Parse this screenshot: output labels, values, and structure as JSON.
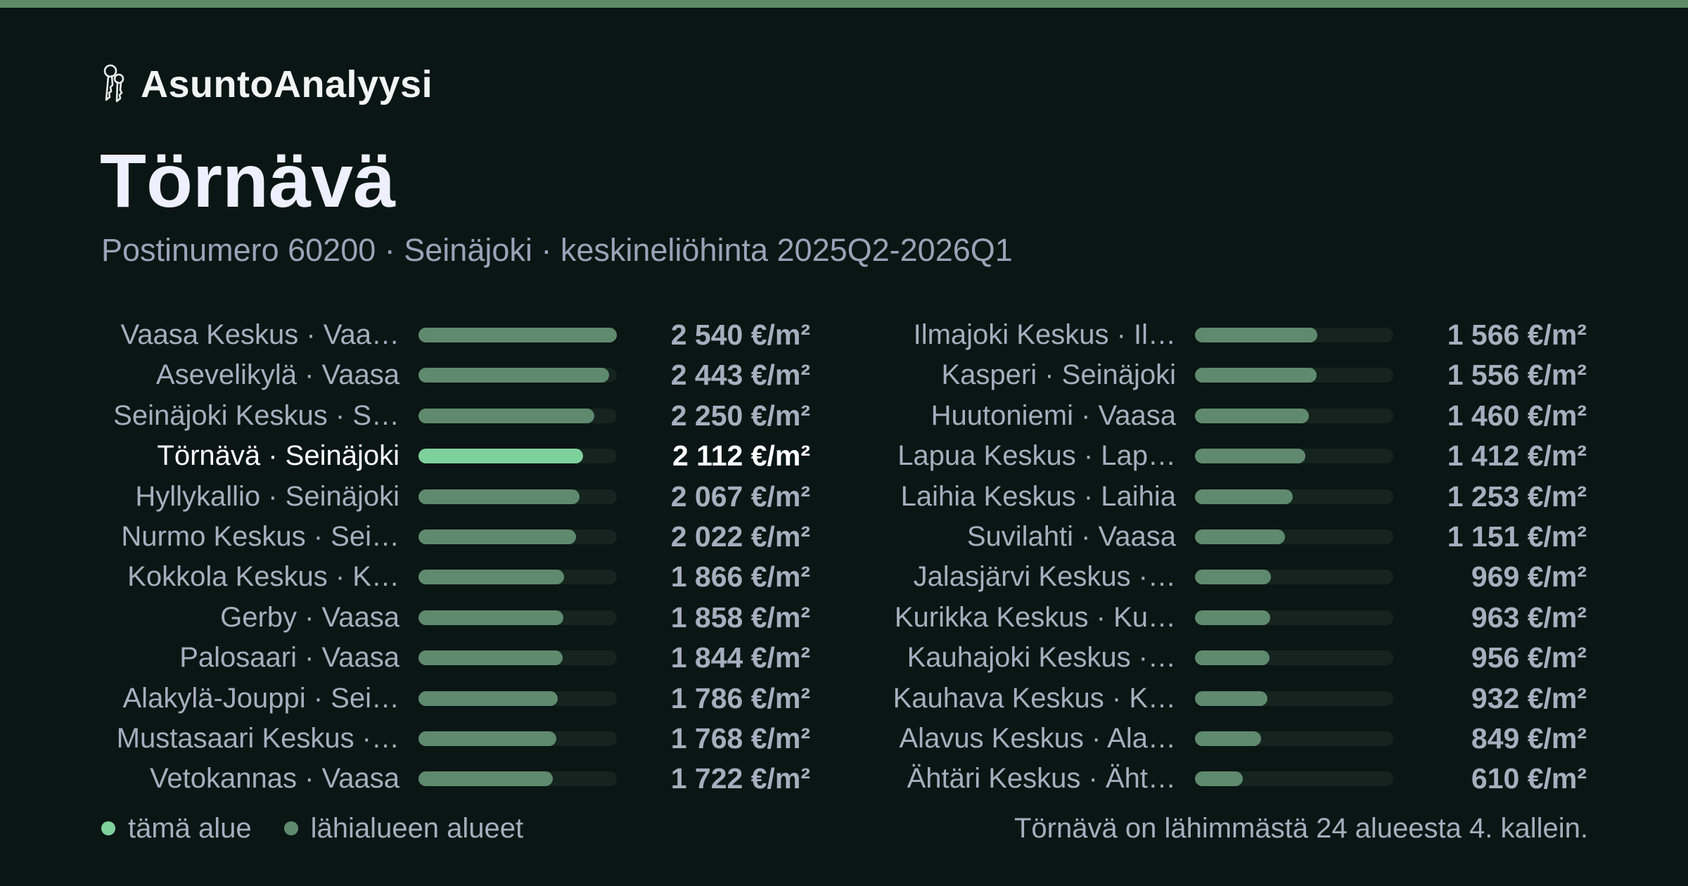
{
  "colors": {
    "background": "#0a1614",
    "accent_bar": "#5f8a66",
    "bar_highlight": "#7fd19c",
    "bar_normal": "#5f8a6e",
    "track": "#15241f",
    "text_muted": "#a6aebf",
    "text_strong": "#ffffff"
  },
  "brand": {
    "name": "AsuntoAnalyysi",
    "icon": "keys-icon"
  },
  "title": "Törnävä",
  "subtitle": "Postinumero 60200 · Seinäjoki · keskineliöhinta 2025Q2-2026Q1",
  "chart_data": {
    "type": "bar",
    "orientation": "horizontal",
    "unit": "€/m²",
    "xlim": [
      0,
      2540
    ],
    "highlight": "Törnävä · Seinäjoki",
    "columns": [
      [
        {
          "label": "Vaasa Keskus · Vaa…",
          "value": 2540,
          "value_label": "2 540 €/m²"
        },
        {
          "label": "Asevelikylä · Vaasa",
          "value": 2443,
          "value_label": "2 443 €/m²"
        },
        {
          "label": "Seinäjoki Keskus · S…",
          "value": 2250,
          "value_label": "2 250 €/m²"
        },
        {
          "label": "Törnävä · Seinäjoki",
          "value": 2112,
          "value_label": "2 112 €/m²",
          "highlight": true
        },
        {
          "label": "Hyllykallio · Seinäjoki",
          "value": 2067,
          "value_label": "2 067 €/m²"
        },
        {
          "label": "Nurmo Keskus · Sei…",
          "value": 2022,
          "value_label": "2 022 €/m²"
        },
        {
          "label": "Kokkola Keskus · K…",
          "value": 1866,
          "value_label": "1 866 €/m²"
        },
        {
          "label": "Gerby · Vaasa",
          "value": 1858,
          "value_label": "1 858 €/m²"
        },
        {
          "label": "Palosaari · Vaasa",
          "value": 1844,
          "value_label": "1 844 €/m²"
        },
        {
          "label": "Alakylä-Jouppi · Sei…",
          "value": 1786,
          "value_label": "1 786 €/m²"
        },
        {
          "label": "Mustasaari Keskus ·…",
          "value": 1768,
          "value_label": "1 768 €/m²"
        },
        {
          "label": "Vetokannas · Vaasa",
          "value": 1722,
          "value_label": "1 722 €/m²"
        }
      ],
      [
        {
          "label": "Ilmajoki Keskus · Il…",
          "value": 1566,
          "value_label": "1 566 €/m²"
        },
        {
          "label": "Kasperi · Seinäjoki",
          "value": 1556,
          "value_label": "1 556 €/m²"
        },
        {
          "label": "Huutoniemi · Vaasa",
          "value": 1460,
          "value_label": "1 460 €/m²"
        },
        {
          "label": "Lapua Keskus · Lap…",
          "value": 1412,
          "value_label": "1 412 €/m²"
        },
        {
          "label": "Laihia Keskus · Laihia",
          "value": 1253,
          "value_label": "1 253 €/m²"
        },
        {
          "label": "Suvilahti · Vaasa",
          "value": 1151,
          "value_label": "1 151 €/m²"
        },
        {
          "label": "Jalasjärvi Keskus ·…",
          "value": 969,
          "value_label": "969 €/m²"
        },
        {
          "label": "Kurikka Keskus · Ku…",
          "value": 963,
          "value_label": "963 €/m²"
        },
        {
          "label": "Kauhajoki Keskus ·…",
          "value": 956,
          "value_label": "956 €/m²"
        },
        {
          "label": "Kauhava Keskus · K…",
          "value": 932,
          "value_label": "932 €/m²"
        },
        {
          "label": "Alavus Keskus · Ala…",
          "value": 849,
          "value_label": "849 €/m²"
        },
        {
          "label": "Ähtäri Keskus · Äht…",
          "value": 610,
          "value_label": "610 €/m²"
        }
      ]
    ],
    "legend": [
      {
        "label": "tämä alue",
        "color": "#7fd19c"
      },
      {
        "label": "lähialueen alueet",
        "color": "#5f8a6e"
      }
    ],
    "note": "Törnävä on lähimmästä 24 alueesta 4. kallein."
  }
}
